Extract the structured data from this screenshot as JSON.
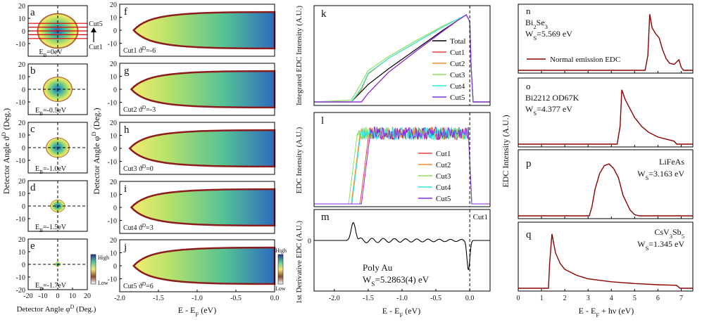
{
  "colors": {
    "map_high": "#1f3b8c",
    "map_mid": "#f0ea6a",
    "map_low": "#ffffff",
    "edge": "#8b1d1d",
    "dark_red_line": "#8b0000",
    "cut_lines": "#d80000",
    "legend_total": "#000000",
    "legend_cut1": "#e8413c",
    "legend_cut2": "#f08c2c",
    "legend_cut3": "#8ee05a",
    "legend_cut4": "#2ee8e8",
    "legend_cut5": "#8a2be2"
  },
  "panel_letters": {
    "a": "a",
    "b": "b",
    "c": "c",
    "d": "d",
    "e": "e",
    "f": "f",
    "g": "g",
    "h": "h",
    "i": "i",
    "j": "j",
    "k": "k",
    "l": "l",
    "m": "m",
    "n": "n",
    "o": "o",
    "p": "p",
    "q": "q"
  },
  "labels": {
    "cut5": "Cut5",
    "cut1": "Cut1",
    "colorbar_high": "High",
    "colorbar_low": "Low",
    "left_ylabel": "Detector Angle ϑ",
    "left_ylabel_sup": "D",
    "left_ylabel_unit": " (Deg.)",
    "left_xlabel": "Detector Angle φ",
    "left_xlabel_sup": "D",
    "left_xlabel_unit": " (Deg.)",
    "mid_ylabel": "Detector Angle φ",
    "mid_ylabel_sup": "D",
    "mid_ylabel_unit": " (Deg.)",
    "mid_xlabel": "E - E",
    "mid_xlabel_sub": "F",
    "mid_xlabel_unit": " (eV)",
    "k_ylabel": "Integrated EDC Intensity (A.U.)",
    "l_ylabel": "EDC Intensity (A.U.)",
    "m_ylabel": "1st Derivative EDC (A.U.)",
    "klm_xlabel": "E - E",
    "klm_xlabel_sub": "F",
    "klm_xlabel_unit": " (eV)",
    "m_cut": "Cut1",
    "poly_au": "Poly Au",
    "ws_au_prefix": "W",
    "ws_au_sub": "S",
    "ws_au_value": "=5.2863(4) eV",
    "right_ylabel": "EDC Intensity (A.U.)",
    "right_xlabel": "E - E",
    "right_xlabel_sub": "F",
    "right_xlabel_unit": " + hν (eV)",
    "n_material": "Bi",
    "n_material_sub1": "2",
    "n_material_mid": "Se",
    "n_material_sub2": "3",
    "n_ws": "=5.569 eV",
    "n_legend": "Normal emission EDC",
    "o_material": "Bi2212 OD67K",
    "o_ws": "=4.377 eV",
    "p_material": "LiFeAs",
    "p_ws": "=3.163 eV",
    "q_material": "CsV",
    "q_material_sub1": "3",
    "q_material_mid": "Sb",
    "q_material_sub2": "5",
    "q_ws": "=1.345 eV",
    "ws_prefix": "W",
    "ws_sub": "S"
  },
  "eb_labels": [
    {
      "prefix": "E",
      "sub": "B",
      "value": "=0eV"
    },
    {
      "prefix": "E",
      "sub": "B",
      "value": "=-0.5eV"
    },
    {
      "prefix": "E",
      "sub": "B",
      "value": "=-1.0eV"
    },
    {
      "prefix": "E",
      "sub": "B",
      "value": "=-1.5eV"
    },
    {
      "prefix": "E",
      "sub": "B",
      "value": "=-1.7eV"
    }
  ],
  "cut_labels": [
    {
      "cut": "Cut1",
      "angle": "ϑ",
      "sup": "D",
      "value": "=-6"
    },
    {
      "cut": "Cut2",
      "angle": "ϑ",
      "sup": "D",
      "value": "=-3"
    },
    {
      "cut": "Cut3",
      "angle": "ϑ",
      "sup": "D",
      "value": "=0"
    },
    {
      "cut": "Cut4",
      "angle": "ϑ",
      "sup": "D",
      "value": "=3"
    },
    {
      "cut": "Cut5",
      "angle": "ϑ",
      "sup": "D",
      "value": "=6"
    }
  ],
  "chart_data": [
    {
      "id": "a-e",
      "type": "heatmap",
      "description_panels": [
        "a",
        "b",
        "c",
        "d",
        "e"
      ],
      "xlabel": "Detector Angle φD (Deg.)",
      "ylabel": "Detector Angle ϑD (Deg.)",
      "xlim": [
        -20,
        20
      ],
      "ylim": [
        -20,
        20
      ],
      "xticks": [
        "-20",
        "-10",
        "0",
        "10",
        "20"
      ],
      "yticks": [
        "20",
        "10",
        "0",
        "-10",
        "-20"
      ],
      "binding_energies_eV": [
        0,
        -0.5,
        -1.0,
        -1.5,
        -1.7
      ],
      "disk_radius_deg": [
        14,
        10,
        8,
        5,
        2
      ],
      "cut_angles_deg": [
        -6,
        -3,
        0,
        3,
        6
      ]
    },
    {
      "id": "f-j",
      "type": "heatmap",
      "description_panels": [
        "f",
        "g",
        "h",
        "i",
        "j"
      ],
      "xlabel": "E - EF (eV)",
      "ylabel": "Detector Angle φD (Deg.)",
      "xlim": [
        -2.0,
        0.0
      ],
      "ylim": [
        -20,
        20
      ],
      "xticks": [
        "-2.0",
        "-1.5",
        "-1.0",
        "-0.5",
        "0.0"
      ],
      "yticks": [
        "20",
        "10",
        "0",
        "-10"
      ],
      "cutoff_energy_eV": [
        -1.82,
        -1.85,
        -1.87,
        -1.85,
        -1.82
      ],
      "half_width_at_EF_deg": 14
    },
    {
      "id": "k",
      "type": "line",
      "ylabel": "Integrated EDC Intensity (A.U.)",
      "xlim": [
        -2.3,
        0.3
      ],
      "x": [
        -2.3,
        -1.75,
        -1.6,
        -1.5,
        -1.2,
        -0.8,
        -0.4,
        -0.15,
        -0.05,
        0.0,
        0.02,
        0.05,
        0.3
      ],
      "series": [
        {
          "name": "Total",
          "values": [
            0,
            0,
            0.12,
            0.2,
            0.38,
            0.6,
            0.82,
            0.95,
            1.0,
            0.92,
            0.4,
            0,
            0
          ]
        },
        {
          "name": "Cut1",
          "values": [
            0,
            0,
            0,
            0.1,
            0.34,
            0.58,
            0.81,
            0.95,
            1.0,
            0.92,
            0.4,
            0,
            0
          ]
        },
        {
          "name": "Cut2",
          "values": [
            0,
            0,
            0.14,
            0.32,
            0.5,
            0.68,
            0.86,
            0.96,
            1.0,
            0.92,
            0.4,
            0,
            0
          ]
        },
        {
          "name": "Cut3",
          "values": [
            0,
            0.02,
            0.22,
            0.36,
            0.52,
            0.7,
            0.87,
            0.96,
            1.0,
            0.92,
            0.4,
            0,
            0
          ]
        },
        {
          "name": "Cut4",
          "values": [
            0,
            0,
            0.16,
            0.33,
            0.5,
            0.68,
            0.86,
            0.96,
            1.0,
            0.92,
            0.4,
            0,
            0
          ]
        },
        {
          "name": "Cut5",
          "values": [
            0,
            0,
            0,
            0.1,
            0.34,
            0.58,
            0.81,
            0.95,
            1.0,
            0.92,
            0.4,
            0,
            0
          ]
        }
      ]
    },
    {
      "id": "l",
      "type": "line",
      "ylabel": "EDC Intensity (A.U.)",
      "xlim": [
        -2.3,
        0.3
      ],
      "edge_onset_eV": {
        "Cut1": -1.57,
        "Cut2": -1.7,
        "Cut3": -1.74,
        "Cut4": -1.69,
        "Cut5": -1.55
      },
      "fermi_edge_eV": 0.0,
      "plateau": 0.88,
      "series_names": [
        "Cut1",
        "Cut2",
        "Cut3",
        "Cut4",
        "Cut5"
      ]
    },
    {
      "id": "m",
      "type": "line",
      "xlabel": "E - EF (eV)",
      "ylabel": "1st Derivative EDC (A.U.)",
      "xlim": [
        -2.3,
        0.3
      ],
      "xticks": [
        "-2.0",
        "-1.5",
        "-1.0",
        "-0.5",
        "0.0"
      ],
      "yticks": [
        "0"
      ],
      "series": [
        {
          "name": "Cut1",
          "peak_eV": -1.72,
          "peak_value": 0.85,
          "dip_eV": -0.02,
          "dip_value": -1.0
        }
      ]
    },
    {
      "id": "n-q",
      "type": "line",
      "xlabel": "E - EF + hν (eV)",
      "ylabel": "EDC Intensity (A.U.)",
      "xlim": [
        0,
        7.5
      ],
      "xticks": [
        "0",
        "1",
        "2",
        "3",
        "4",
        "5",
        "6",
        "7"
      ],
      "series": [
        {
          "name": "Bi2Se3",
          "work_function_eV": 5.569,
          "x": [
            0,
            5.45,
            5.569,
            5.65,
            5.75,
            5.9,
            6.05,
            6.2,
            6.35,
            6.5,
            6.7,
            6.9,
            7.0,
            7.1,
            7.5
          ],
          "values": [
            0,
            0,
            0.25,
            0.95,
            0.72,
            0.62,
            0.55,
            0.35,
            0.2,
            0.12,
            0.1,
            0.18,
            0.05,
            0,
            0
          ]
        },
        {
          "name": "Bi2212 OD67K",
          "work_function_eV": 4.377,
          "x": [
            0,
            4.25,
            4.377,
            4.45,
            4.6,
            4.8,
            5.0,
            5.3,
            5.6,
            6.0,
            6.4,
            6.7,
            6.8,
            7.5
          ],
          "values": [
            0,
            0,
            0.3,
            0.92,
            0.75,
            0.6,
            0.45,
            0.3,
            0.2,
            0.12,
            0.08,
            0.05,
            0,
            0
          ]
        },
        {
          "name": "LiFeAs",
          "work_function_eV": 3.163,
          "x": [
            0,
            3.05,
            3.163,
            3.3,
            3.5,
            3.7,
            3.9,
            4.1,
            4.3,
            4.5,
            4.8,
            5.0,
            5.2,
            7.5
          ],
          "values": [
            0,
            0,
            0.15,
            0.45,
            0.72,
            0.85,
            0.88,
            0.8,
            0.65,
            0.35,
            0.1,
            0.02,
            0,
            0
          ]
        },
        {
          "name": "CsV3Sb5",
          "work_function_eV": 1.345,
          "x": [
            0,
            1.3,
            1.345,
            1.45,
            1.6,
            1.8,
            2.0,
            2.5,
            3.0,
            4.0,
            5.0,
            6.0,
            6.8,
            6.95,
            7.5
          ],
          "values": [
            0,
            0,
            0.4,
            0.92,
            0.6,
            0.42,
            0.32,
            0.22,
            0.16,
            0.11,
            0.08,
            0.06,
            0.05,
            0,
            0
          ]
        }
      ]
    }
  ]
}
